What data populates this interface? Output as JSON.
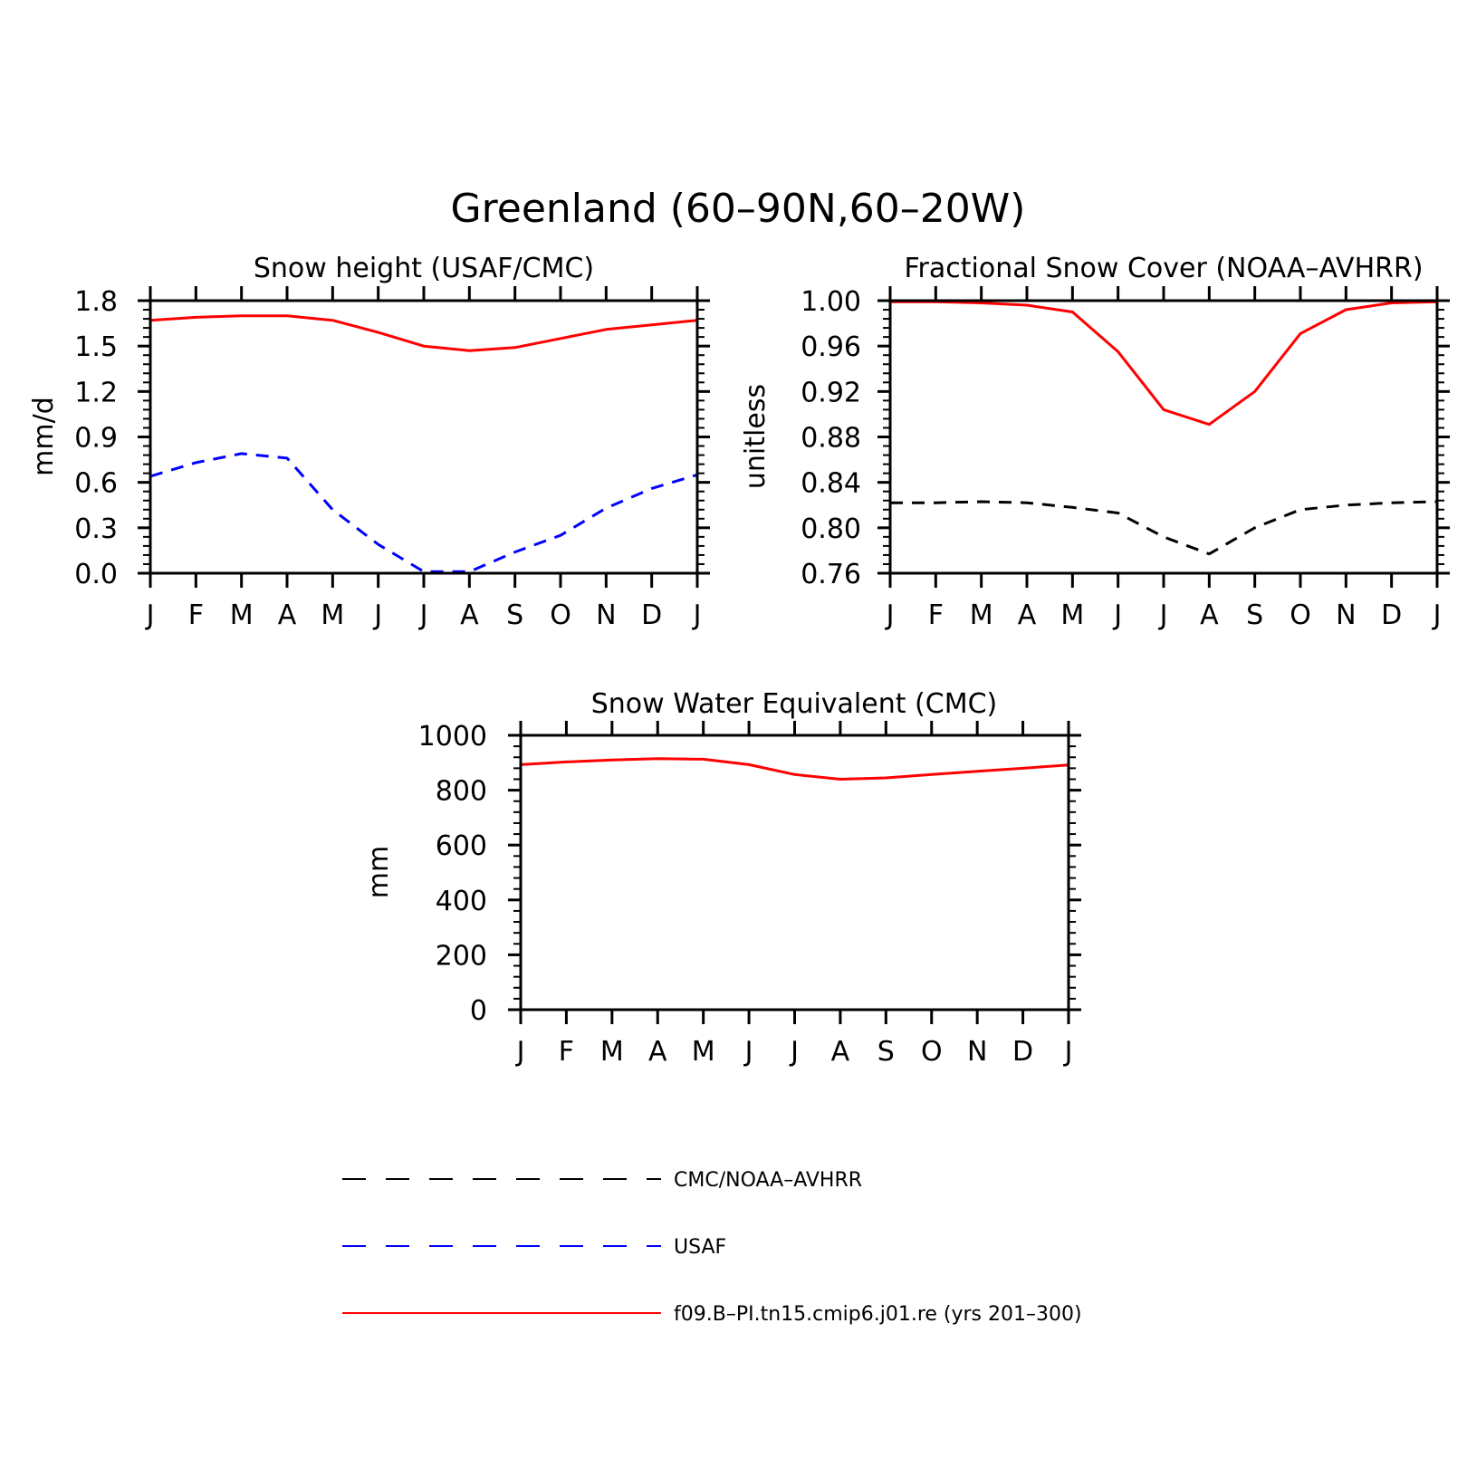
{
  "figure": {
    "title": "Greenland (60–90N,60–20W)"
  },
  "colors": {
    "obs": "#000000",
    "usaf": "#0000ff",
    "model": "#ff0000"
  },
  "legend": [
    {
      "label": "CMC/NOAA–AVHRR",
      "color": "#000000",
      "style": "dashed"
    },
    {
      "label": "USAF",
      "color": "#0000ff",
      "style": "dashed"
    },
    {
      "label": "f09.B–PI.tn15.cmip6.j01.re (yrs 201–300)",
      "color": "#ff0000",
      "style": "solid"
    }
  ],
  "chart_data": [
    {
      "type": "line",
      "title": "Snow height (USAF/CMC)",
      "xlabel": "",
      "ylabel": "mm/d",
      "categories": [
        "J",
        "F",
        "M",
        "A",
        "M",
        "J",
        "J",
        "A",
        "S",
        "O",
        "N",
        "D",
        "J"
      ],
      "ylim": [
        0,
        1.8
      ],
      "yticks": [
        "0.0",
        "0.3",
        "0.6",
        "0.9",
        "1.2",
        "1.5",
        "1.8"
      ],
      "series": [
        {
          "name": "CMC/NOAA–AVHRR",
          "style": "dashed",
          "color": "#000000",
          "values": [
            0,
            0,
            0,
            0,
            0,
            0,
            0,
            0,
            0,
            0,
            0,
            0,
            0
          ]
        },
        {
          "name": "USAF",
          "style": "dashed",
          "color": "#0000ff",
          "values": [
            0.64,
            0.73,
            0.79,
            0.76,
            0.42,
            0.19,
            0.01,
            0.01,
            0.14,
            0.25,
            0.43,
            0.56,
            0.65
          ]
        },
        {
          "name": "f09.B–PI.tn15.cmip6.j01.re (yrs 201–300)",
          "style": "solid",
          "color": "#ff0000",
          "values": [
            1.67,
            1.69,
            1.7,
            1.7,
            1.67,
            1.59,
            1.5,
            1.47,
            1.49,
            1.55,
            1.61,
            1.64,
            1.67
          ]
        }
      ]
    },
    {
      "type": "line",
      "title": "Fractional Snow Cover (NOAA–AVHRR)",
      "xlabel": "",
      "ylabel": "unitless",
      "categories": [
        "J",
        "F",
        "M",
        "A",
        "M",
        "J",
        "J",
        "A",
        "S",
        "O",
        "N",
        "D",
        "J"
      ],
      "ylim": [
        0.76,
        1.0
      ],
      "yticks": [
        "0.76",
        "0.80",
        "0.84",
        "0.88",
        "0.92",
        "0.96",
        "1.00"
      ],
      "series": [
        {
          "name": "CMC/NOAA–AVHRR",
          "style": "dashed",
          "color": "#000000",
          "values": [
            0.822,
            0.822,
            0.823,
            0.822,
            0.818,
            0.813,
            0.792,
            0.777,
            0.8,
            0.816,
            0.82,
            0.822,
            0.823
          ]
        },
        {
          "name": "f09.B–PI.tn15.cmip6.j01.re (yrs 201–300)",
          "style": "solid",
          "color": "#ff0000",
          "values": [
            0.999,
            0.999,
            0.998,
            0.996,
            0.99,
            0.955,
            0.904,
            0.891,
            0.92,
            0.971,
            0.992,
            0.998,
            0.999
          ]
        }
      ]
    },
    {
      "type": "line",
      "title": "Snow Water Equivalent (CMC)",
      "xlabel": "",
      "ylabel": "mm",
      "categories": [
        "J",
        "F",
        "M",
        "A",
        "M",
        "J",
        "J",
        "A",
        "S",
        "O",
        "N",
        "D",
        "J"
      ],
      "ylim": [
        0,
        1000
      ],
      "yticks": [
        "0",
        "200",
        "400",
        "600",
        "800",
        "1000"
      ],
      "series": [
        {
          "name": "CMC/NOAA–AVHRR",
          "style": "dashed",
          "color": "#000000",
          "values": [
            0,
            0,
            0,
            0,
            0,
            0,
            0,
            0,
            0,
            0,
            0,
            0,
            0
          ]
        },
        {
          "name": "f09.B–PI.tn15.cmip6.j01.re (yrs 201–300)",
          "style": "solid",
          "color": "#ff0000",
          "values": [
            893,
            903,
            910,
            915,
            913,
            893,
            857,
            840,
            845,
            857,
            869,
            880,
            892
          ]
        }
      ]
    }
  ]
}
